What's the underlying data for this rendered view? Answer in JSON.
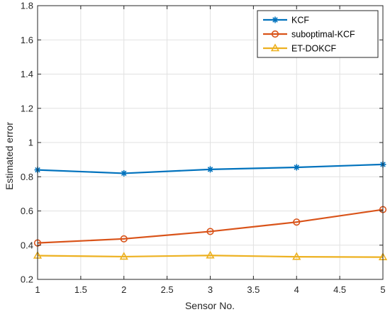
{
  "chart_data": {
    "type": "line",
    "title": "",
    "xlabel": "Sensor No.",
    "ylabel": "Estimated error",
    "xlim": [
      1,
      5
    ],
    "ylim": [
      0.2,
      1.8
    ],
    "xticks": [
      1,
      1.5,
      2,
      2.5,
      3,
      3.5,
      4,
      4.5,
      5
    ],
    "xtick_labels": [
      "1",
      "1.5",
      "2",
      "2.5",
      "3",
      "3.5",
      "4",
      "4.5",
      "5"
    ],
    "yticks": [
      0.2,
      0.4,
      0.6,
      0.8,
      1.0,
      1.2,
      1.4,
      1.6,
      1.8
    ],
    "ytick_labels": [
      "0.2",
      "0.4",
      "0.6",
      "0.8",
      "1",
      "1.2",
      "1.4",
      "1.6",
      "1.8"
    ],
    "grid": true,
    "legend_position": "top-right",
    "x": [
      1,
      2,
      3,
      4,
      5
    ],
    "series": [
      {
        "name": "KCF",
        "values": [
          0.84,
          0.82,
          0.843,
          0.855,
          0.872
        ],
        "color": "#0072BD",
        "marker": "asterisk"
      },
      {
        "name": "suboptimal-KCF",
        "values": [
          0.413,
          0.437,
          0.48,
          0.535,
          0.608
        ],
        "color": "#D95319",
        "marker": "circle"
      },
      {
        "name": "ET-DOKCF",
        "values": [
          0.339,
          0.333,
          0.34,
          0.332,
          0.33
        ],
        "color": "#EDB120",
        "marker": "triangle"
      }
    ]
  }
}
